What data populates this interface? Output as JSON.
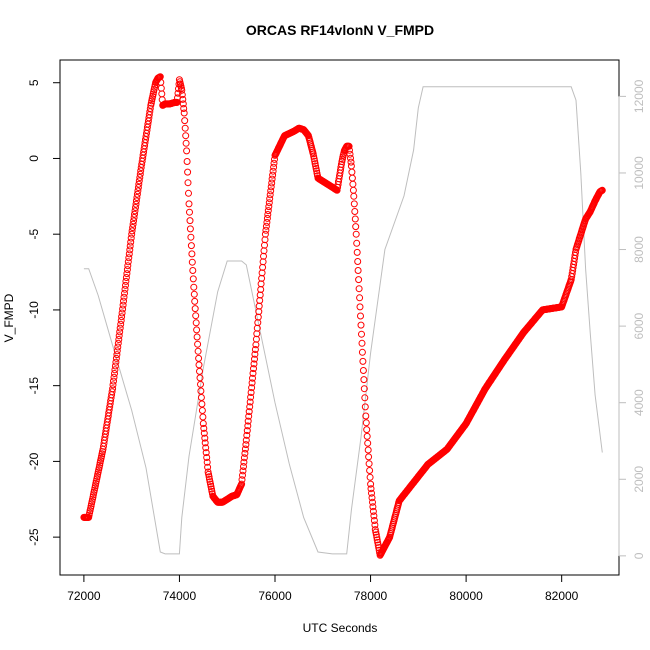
{
  "chart_data": {
    "type": "scatter",
    "title": "ORCAS RF14vlonN V_FMPD",
    "xlabel": "UTC Seconds",
    "ylabel": "V_FMPD",
    "xlim": [
      71500,
      83200
    ],
    "ylim": [
      -27.5,
      6.5
    ],
    "ylim_right": [
      -500,
      12950
    ],
    "x_ticks": [
      72000,
      74000,
      76000,
      78000,
      80000,
      82000
    ],
    "y_ticks": [
      5,
      0,
      -5,
      -10,
      -15,
      -20,
      -25
    ],
    "y_ticks_right": [
      0,
      2000,
      4000,
      6000,
      8000,
      10000,
      12000
    ],
    "colors": {
      "primary": "#ff0000",
      "secondary": "#bebebe",
      "axes": "#000000"
    },
    "series": [
      {
        "axis": "left",
        "style": "open-circles",
        "x": [
          72000,
          72100,
          72200,
          72400,
          72600,
          72800,
          73000,
          73200,
          73400,
          73500,
          73550,
          73600,
          73650,
          73700,
          73800,
          73900,
          73950,
          74000,
          74050,
          74100,
          74150,
          74200,
          74300,
          74400,
          74500,
          74600,
          74700,
          74800,
          74900,
          74950,
          75000,
          75100,
          75200,
          75300,
          75400,
          75600,
          75800,
          76000,
          76200,
          76400,
          76500,
          76600,
          76700,
          76800,
          76900,
          77000,
          77100,
          77200,
          77300,
          77400,
          77450,
          77500,
          77550,
          77600,
          77650,
          77700,
          77800,
          77900,
          78000,
          78100,
          78200,
          78400,
          78600,
          78700,
          78800,
          78900,
          79000,
          79100,
          79200,
          79600,
          80000,
          80400,
          80800,
          81200,
          81600,
          82000,
          82200,
          82300,
          82400,
          82500,
          82600,
          82700,
          82800,
          82850
        ],
        "y": [
          -23.7,
          -23.7,
          -22.2,
          -19.2,
          -15.2,
          -10.2,
          -5,
          -0.6,
          3.5,
          5,
          5.3,
          5.4,
          3.5,
          3.6,
          3.6,
          3.7,
          3.7,
          5.2,
          4.5,
          3,
          0.5,
          -3,
          -8.5,
          -13.2,
          -17.5,
          -20.7,
          -22.3,
          -22.7,
          -22.7,
          -22.6,
          -22.5,
          -22.3,
          -22.2,
          -21.5,
          -18.6,
          -12.3,
          -5,
          0.2,
          1.5,
          1.8,
          2,
          1.9,
          1.5,
          0.3,
          -1.3,
          -1.5,
          -1.7,
          -1.9,
          -2.1,
          -0.2,
          0.5,
          0.8,
          0.8,
          -0.5,
          -2.5,
          -5,
          -11,
          -17,
          -21.5,
          -24.5,
          -26.2,
          -25,
          -22.6,
          -22.2,
          -21.8,
          -21.4,
          -21,
          -20.6,
          -20.2,
          -19.2,
          -17.5,
          -15.2,
          -13.3,
          -11.5,
          -10,
          -9.8,
          -8,
          -6,
          -5,
          -4,
          -3.5,
          -2.8,
          -2.2,
          -2.1
        ]
      },
      {
        "axis": "right",
        "style": "line",
        "x": [
          72000,
          72100,
          72300,
          72600,
          73000,
          73300,
          73600,
          73700,
          73900,
          74000,
          74050,
          74200,
          74500,
          74800,
          75000,
          75300,
          75400,
          75700,
          76000,
          76300,
          76600,
          76900,
          77200,
          77300,
          77500,
          77600,
          77800,
          78000,
          78300,
          78700,
          78900,
          79000,
          79100,
          80000,
          81000,
          82200,
          82300,
          82400,
          82500,
          82600,
          82700,
          82850
        ],
        "y": [
          7500,
          7500,
          6800,
          5500,
          3800,
          2300,
          100,
          50,
          50,
          50,
          1000,
          2600,
          4900,
          6900,
          7700,
          7700,
          7600,
          5800,
          4000,
          2400,
          1000,
          100,
          50,
          50,
          50,
          1200,
          3100,
          5300,
          8000,
          9400,
          10600,
          11700,
          12250,
          12250,
          12250,
          12250,
          11900,
          10000,
          7500,
          5800,
          4200,
          2700
        ]
      }
    ]
  }
}
